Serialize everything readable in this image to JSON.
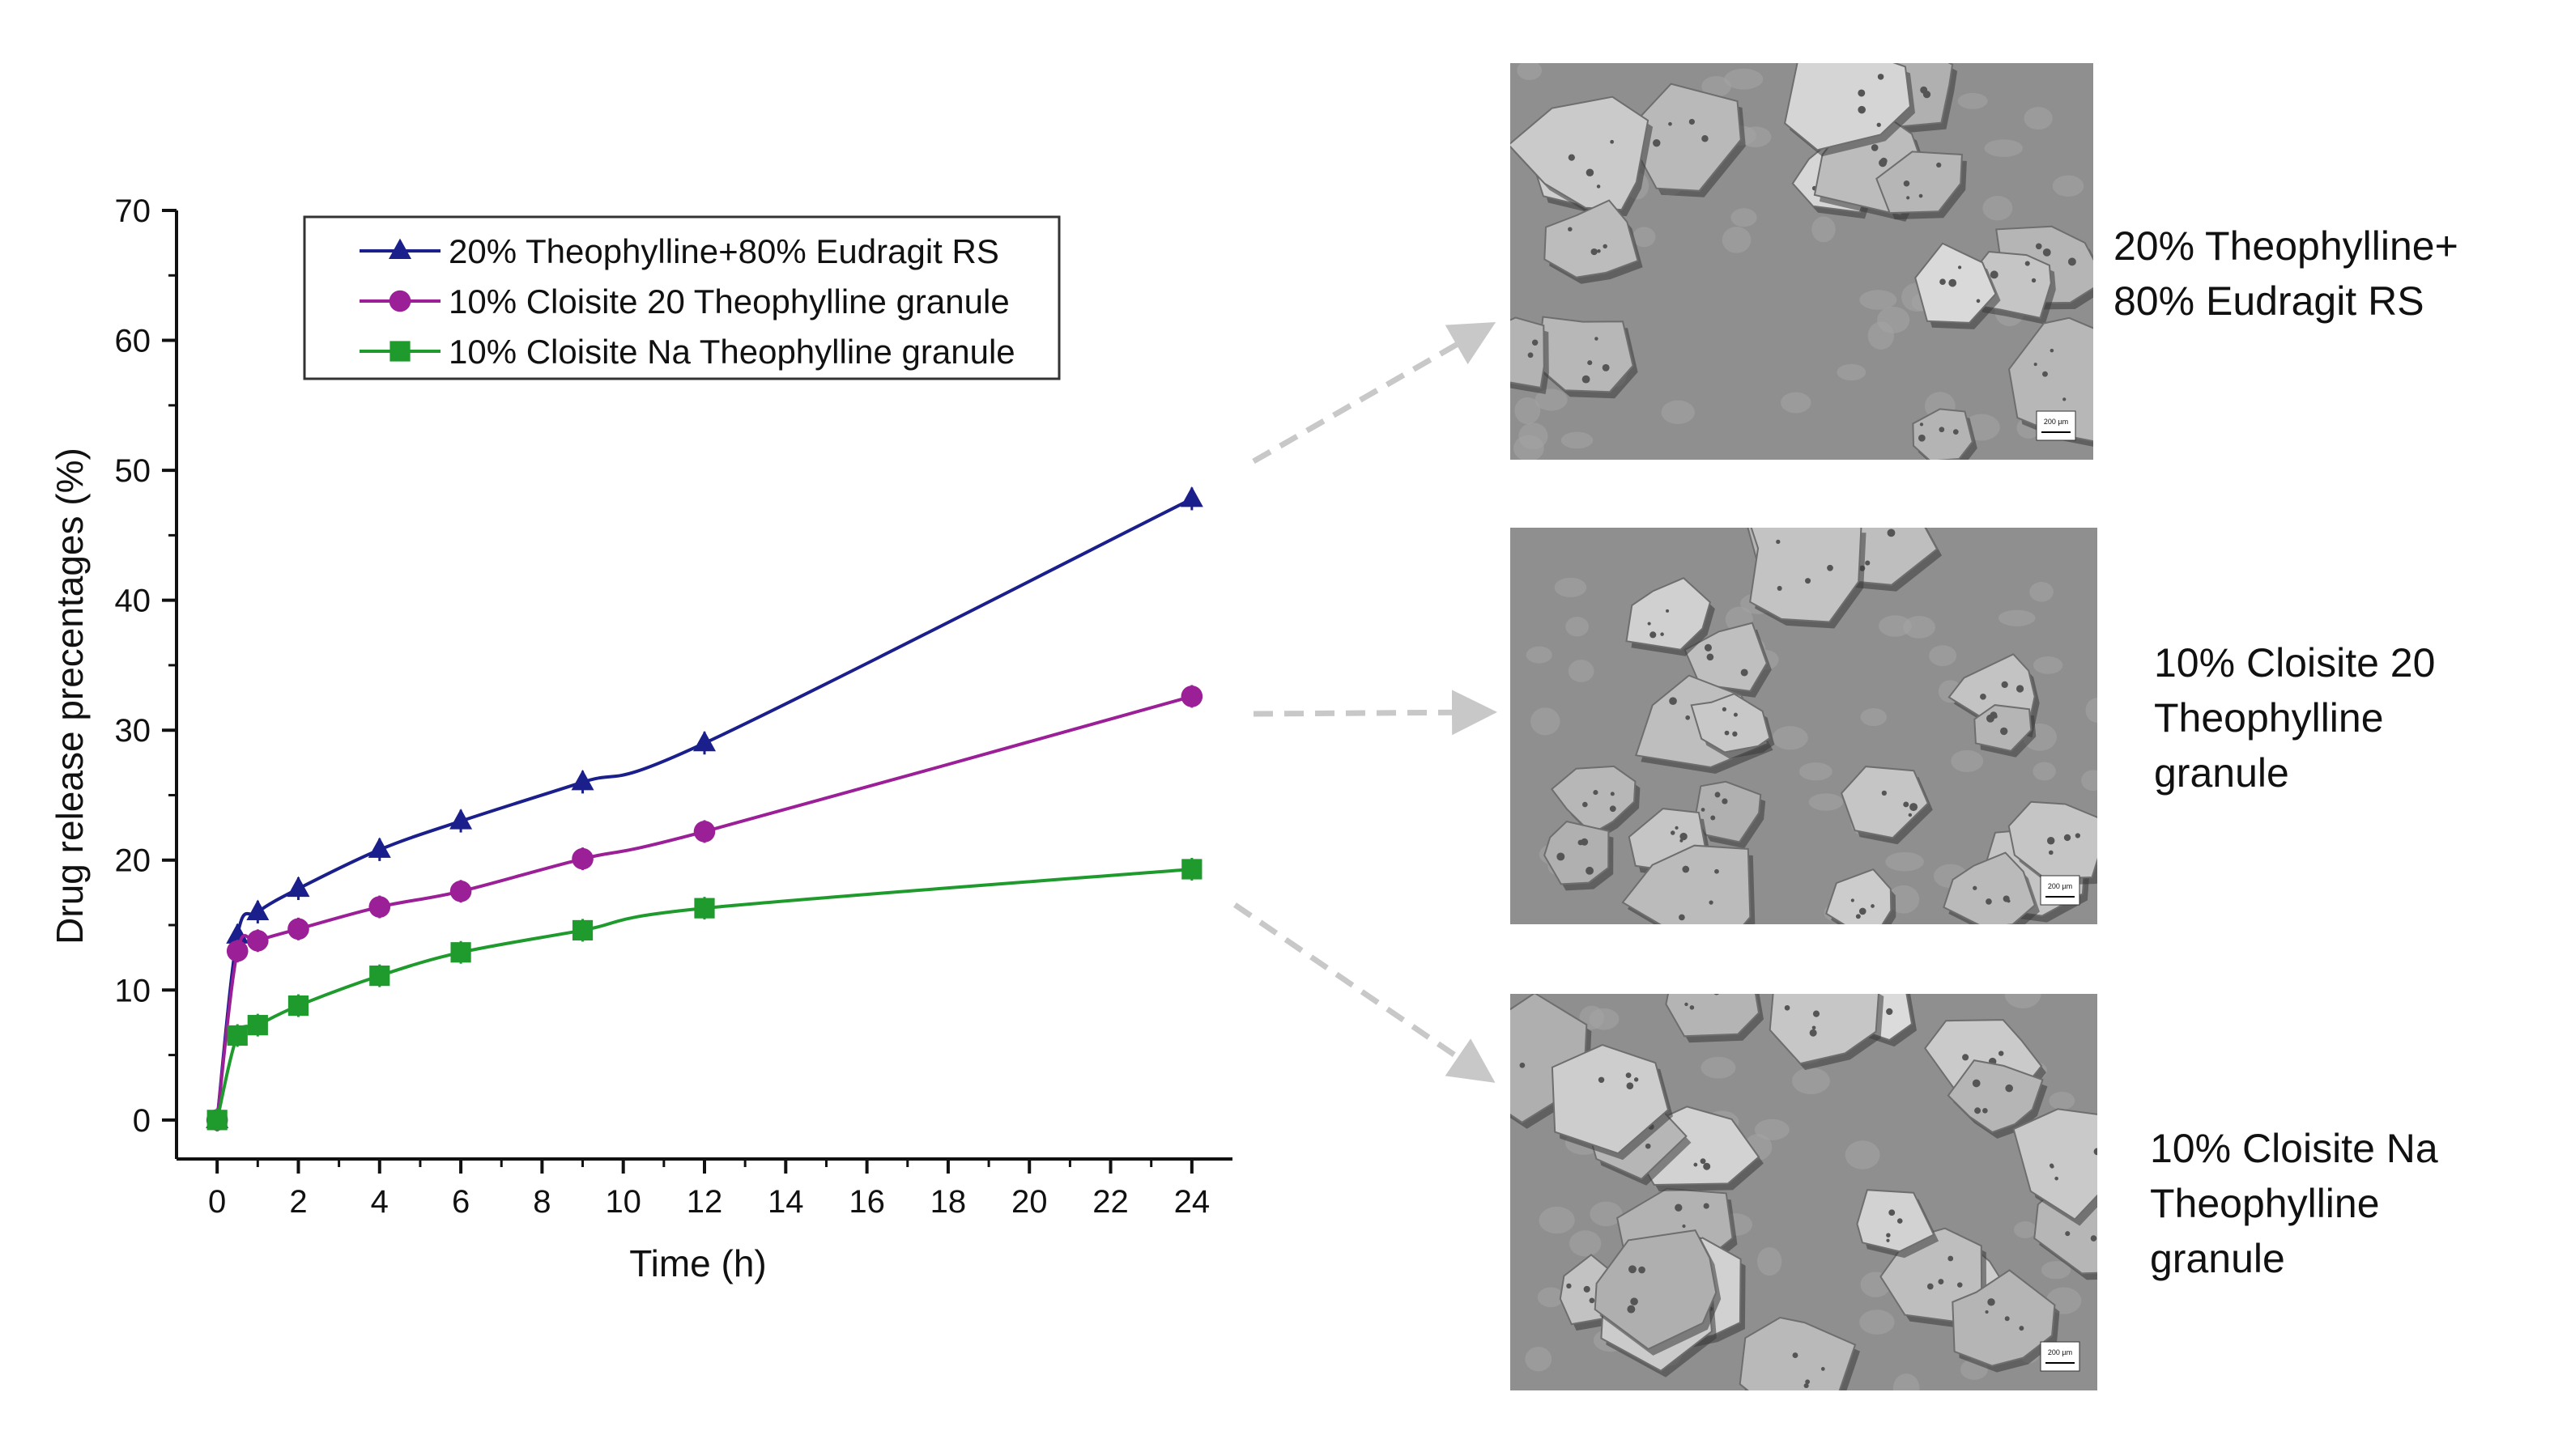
{
  "chart_data": {
    "type": "line",
    "title": "",
    "xlabel": "Time (h)",
    "ylabel": "Drug release precentages (%)",
    "xlim": [
      -1,
      25
    ],
    "ylim": [
      -3,
      70
    ],
    "xticks": [
      0,
      2,
      4,
      6,
      8,
      10,
      12,
      14,
      16,
      18,
      20,
      22,
      24
    ],
    "yticks": [
      0,
      10,
      20,
      30,
      40,
      50,
      60,
      70
    ],
    "grid": false,
    "legend_position": "top-left",
    "series": [
      {
        "name": "20% Theophylline+80% Eudragit RS",
        "color": "#1a1f8c",
        "marker": "triangle",
        "x": [
          0,
          0.5,
          1,
          2,
          4,
          6,
          9,
          12,
          24
        ],
        "y": [
          0,
          14.2,
          16,
          17.8,
          20.8,
          23,
          26,
          29,
          47.8
        ]
      },
      {
        "name": "10% Cloisite 20 Theophylline granule",
        "color": "#9b1f97",
        "marker": "circle",
        "x": [
          0,
          0.5,
          1,
          2,
          4,
          6,
          9,
          12,
          24
        ],
        "y": [
          0,
          13,
          13.8,
          14.7,
          16.4,
          17.6,
          20.1,
          22.2,
          32.6
        ]
      },
      {
        "name": "10% Cloisite Na Theophylline granule",
        "color": "#1f9a2d",
        "marker": "square",
        "x": [
          0,
          0.5,
          1,
          2,
          4,
          6,
          9,
          12,
          24
        ],
        "y": [
          0,
          6.5,
          7.3,
          8.8,
          11.1,
          12.9,
          14.6,
          16.3,
          19.3
        ]
      }
    ]
  },
  "images": [
    {
      "icon": "sem-micrograph-eudragit",
      "caption": "20% Theophylline+\n80% Eudragit RS",
      "scale_label": "200 µm"
    },
    {
      "icon": "sem-micrograph-cloisite-20",
      "caption": "10% Cloisite 20\nTheophylline\ngranule",
      "scale_label": "200 µm"
    },
    {
      "icon": "sem-micrograph-cloisite-na",
      "caption": "10% Cloisite Na\nTheophylline\ngranule",
      "scale_label": "200 µm"
    }
  ],
  "colors": {
    "arrow": "#c8c8c8",
    "axis": "#111111",
    "photo_background": "#8f8f8f"
  }
}
